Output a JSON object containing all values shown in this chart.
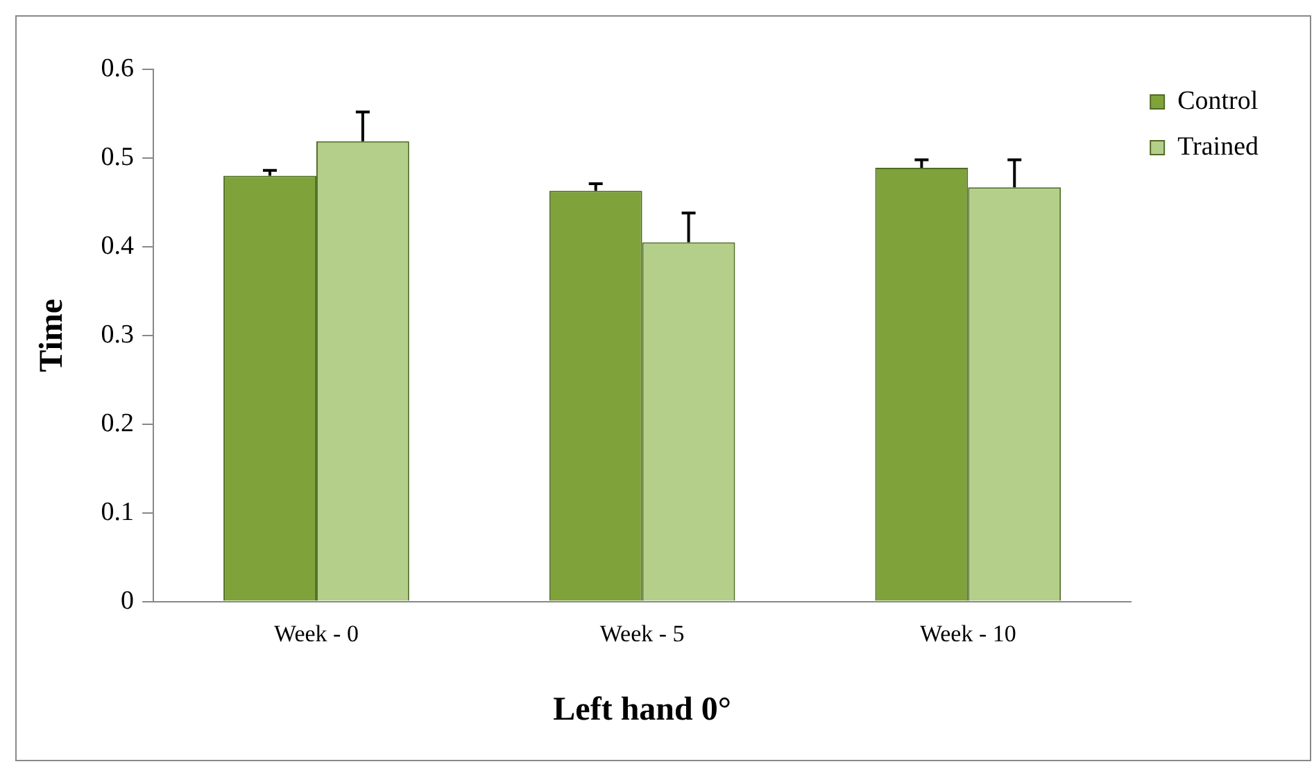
{
  "chart_data": {
    "type": "bar",
    "xlabel": "Left hand 0°",
    "ylabel": "Time",
    "categories": [
      "Week - 0",
      "Week - 5",
      "Week - 10"
    ],
    "series": [
      {
        "name": "Control",
        "color": "#7fa33a",
        "values": [
          0.48,
          0.463,
          0.489
        ],
        "errors": [
          [
            0.48,
            0.486
          ],
          [
            0.463,
            0.471
          ],
          [
            0.489,
            0.498
          ]
        ]
      },
      {
        "name": "Trained",
        "color": "#b3cf8a",
        "values": [
          0.519,
          0.405,
          0.467
        ],
        "errors": [
          [
            0.519,
            0.552
          ],
          [
            0.405,
            0.438
          ],
          [
            0.467,
            0.498
          ]
        ]
      }
    ],
    "ylim": [
      0,
      0.6
    ],
    "yticks": [
      0,
      0.1,
      0.2,
      0.3,
      0.4,
      0.5,
      0.6
    ],
    "grid": false,
    "legend": "top right"
  }
}
